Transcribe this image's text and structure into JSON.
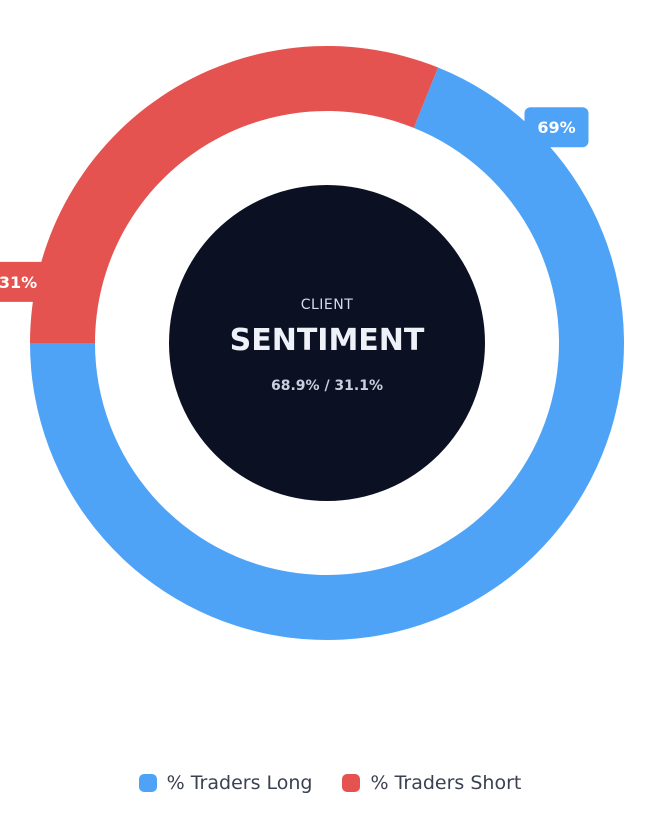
{
  "chart_data": {
    "type": "pie",
    "variant": "donut",
    "center": {
      "label_small": "CLIENT",
      "label_big": "SENTIMENT",
      "summary": "68.9% / 31.1%"
    },
    "series": [
      {
        "name": "% Traders Long",
        "value": 68.9,
        "badge": "69%",
        "color": "#4fa3f7"
      },
      {
        "name": "% Traders Short",
        "value": 31.1,
        "badge": "31%",
        "color": "#e4534f"
      }
    ],
    "legend_position": "bottom"
  },
  "colors": {
    "center_fill": "#0b1122",
    "background": "#ffffff"
  }
}
